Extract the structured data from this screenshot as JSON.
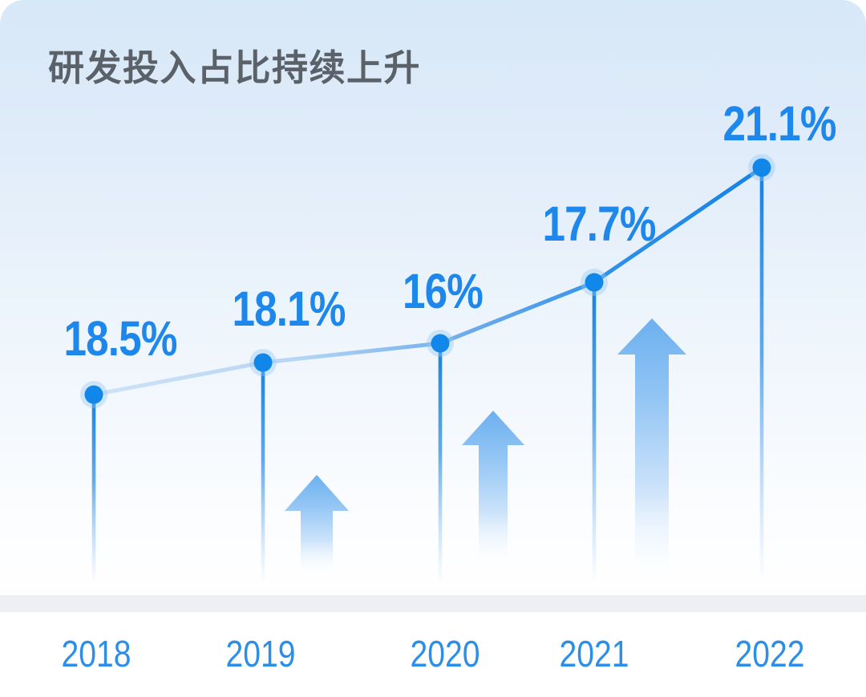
{
  "chart_data": {
    "type": "line",
    "title": "研发投入占比持续上升",
    "categories": [
      "2018",
      "2019",
      "2020",
      "2021",
      "2022"
    ],
    "values": [
      18.5,
      18.1,
      16,
      17.7,
      21.1
    ],
    "value_labels": [
      "18.5%",
      "18.1%",
      "16%",
      "17.7%",
      "21.1%"
    ],
    "unit": "%",
    "grid": false,
    "legend": false,
    "y_axis_shown": false,
    "annotations": {
      "up_arrow_count": 3,
      "description": "decorative upward gradient arrows between data point stems"
    }
  },
  "colors": {
    "accent_blue": "#1287ea",
    "label_blue": "#1d87ec",
    "axis_blue": "#2b8fe9",
    "title_gray": "#5a6169",
    "baseline_gray": "#edeff2",
    "arrow_blue": "#6cb0f0",
    "line_light_blue": "#cfe2f7",
    "line_dark_blue": "#1583e6",
    "background_top": "#d7e8f8",
    "background_bottom": "#ffffff"
  }
}
